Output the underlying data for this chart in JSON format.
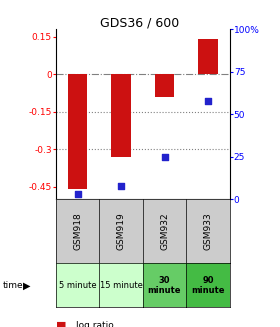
{
  "title": "GDS36 / 600",
  "samples": [
    "GSM918",
    "GSM919",
    "GSM932",
    "GSM933"
  ],
  "times": [
    "5 minute",
    "15 minute",
    "30\nminute",
    "90\nminute"
  ],
  "time_colors": [
    "#ccffcc",
    "#ccffcc",
    "#66cc66",
    "#44bb44"
  ],
  "log_ratios": [
    -0.46,
    -0.33,
    -0.09,
    0.14
  ],
  "percentile_ranks": [
    3,
    8,
    25,
    58
  ],
  "ylim_left": [
    -0.5,
    0.18
  ],
  "ylim_right": [
    0,
    100
  ],
  "y_ticks_left": [
    0.15,
    0,
    -0.15,
    -0.3,
    -0.45
  ],
  "y_ticks_right": [
    100,
    75,
    50,
    25,
    0
  ],
  "bar_color": "#cc1111",
  "dot_color": "#2222cc",
  "dotted_lines": [
    -0.15,
    -0.3
  ],
  "bar_width": 0.45,
  "background_color": "#ffffff"
}
